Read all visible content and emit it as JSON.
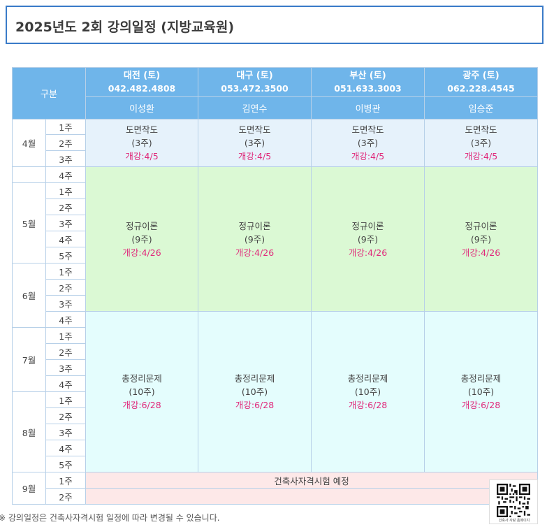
{
  "title": "2025년도 2회 강의일정 (지방교육원)",
  "header": {
    "corner_label": "구분",
    "branches": [
      {
        "city": "대전 (토)",
        "phone": "042.482.4808",
        "teacher": "이성환"
      },
      {
        "city": "대구 (토)",
        "phone": "053.472.3500",
        "teacher": "김연수"
      },
      {
        "city": "부산 (토)",
        "phone": "051.633.3003",
        "teacher": "이병관"
      },
      {
        "city": "광주 (토)",
        "phone": "062.228.4545",
        "teacher": "임승준"
      }
    ]
  },
  "months": [
    "4월",
    "5월",
    "6월",
    "7월",
    "8월",
    "9월"
  ],
  "weeks": [
    "1주",
    "2주",
    "3주",
    "4주",
    "1주",
    "2주",
    "3주",
    "4주",
    "5주",
    "1주",
    "2주",
    "3주",
    "4주",
    "1주",
    "2주",
    "3주",
    "4주",
    "1주",
    "2주",
    "3주",
    "4주",
    "5주",
    "1주",
    "2주"
  ],
  "courses": {
    "drawing": {
      "name": "도면작도",
      "duration": "(3주)",
      "open": "개강:4/5"
    },
    "theory": {
      "name": "정규이론",
      "duration": "(9주)",
      "open": "개강:4/26"
    },
    "review": {
      "name": "총정리문제",
      "duration": "(10주)",
      "open": "개강:6/28"
    }
  },
  "exam_note": "건축사자격시험 예정",
  "footnote": "※ 강의일정은 건축사자격시험 일정에 따라 변경될 수 있습니다.",
  "qr_caption": "건축사 사랑 홈페이지",
  "colors": {
    "header_bg": "#6fb5ea",
    "drawing_bg": "#e6f2fb",
    "theory_bg": "#dbf9d4",
    "review_bg": "#e4fdfd",
    "exam_bg": "#fde8e8",
    "open_date": "#e0287a",
    "title_border": "#3a7bc8"
  }
}
